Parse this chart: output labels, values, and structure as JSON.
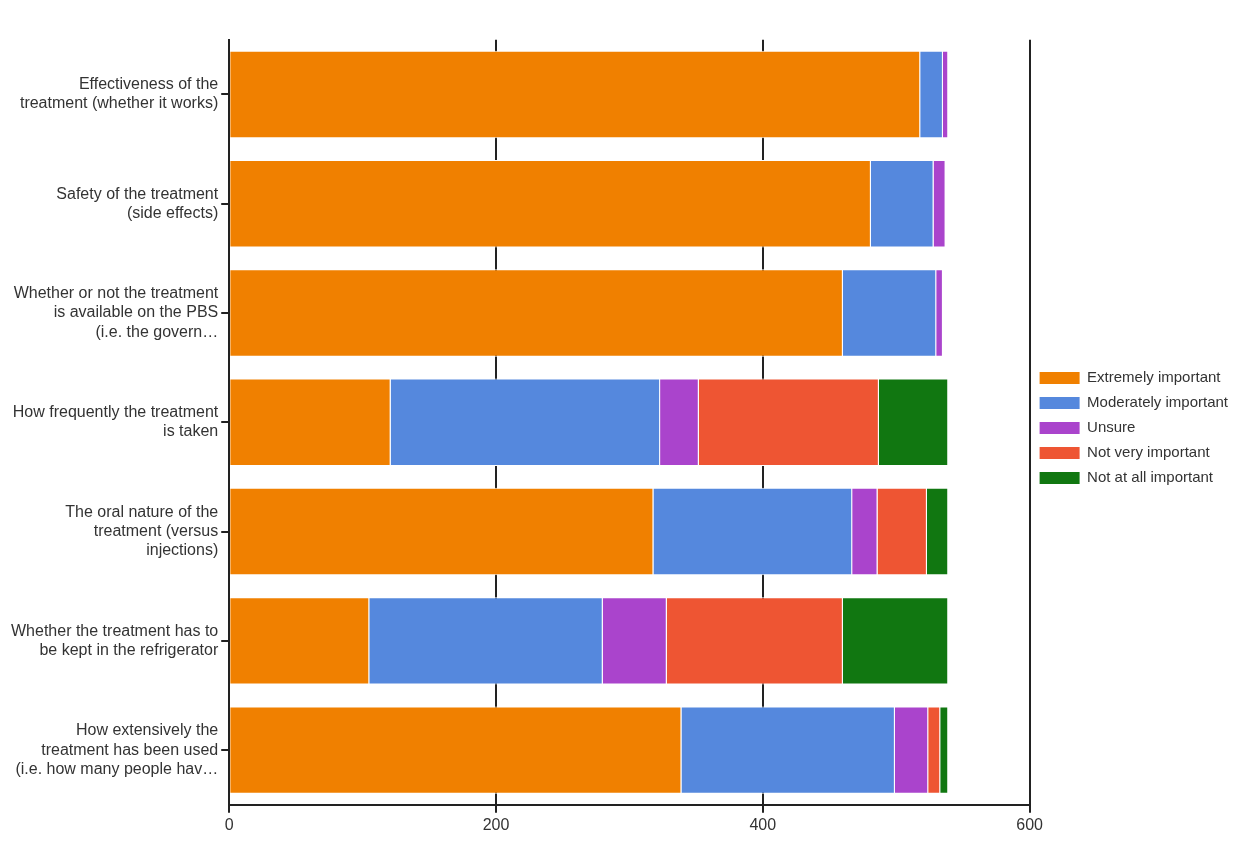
{
  "chart_data": {
    "type": "bar",
    "orientation": "horizontal",
    "stacked": true,
    "categories": [
      "Effectiveness of the treatment (whether it works)",
      "Safety of the treatment (side effects)",
      "Whether or not the treatment is available on the PBS (i.e. the govern…",
      "How frequently the treatment is taken",
      "The oral nature of the treatment (versus injections)",
      "Whether the treatment has to be kept in the refrigerator",
      "How extensively the treatment has been used (i.e. how many people hav…"
    ],
    "series": [
      {
        "name": "Extremely important",
        "color": "#f08000",
        "values": [
          518,
          481,
          460,
          121,
          318,
          105,
          339
        ]
      },
      {
        "name": "Moderately important",
        "color": "#5588dd",
        "values": [
          17,
          47,
          70,
          202,
          149,
          175,
          160
        ]
      },
      {
        "name": "Unsure",
        "color": "#aa44cc",
        "values": [
          4,
          9,
          5,
          29,
          19,
          48,
          25
        ]
      },
      {
        "name": "Not very important",
        "color": "#ee5533",
        "values": [
          0,
          null,
          null,
          135,
          37,
          132,
          9
        ]
      },
      {
        "name": "Not at all important",
        "color": "#117711",
        "values": [
          0,
          null,
          null,
          52,
          16,
          79,
          6
        ]
      }
    ],
    "xlim": [
      0,
      600
    ],
    "xticks": [
      0,
      200,
      400,
      600
    ],
    "grid": "x",
    "legend": "right"
  }
}
